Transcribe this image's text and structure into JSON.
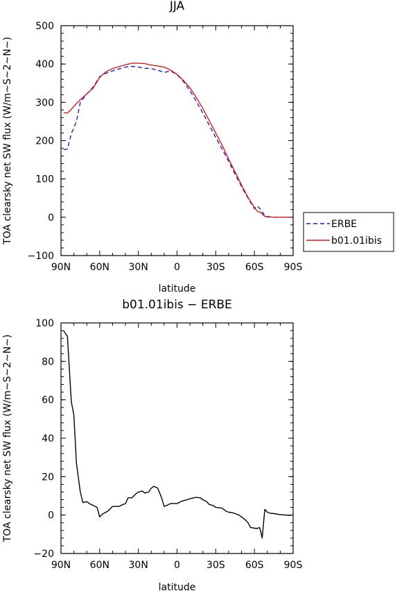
{
  "chart_data": [
    {
      "type": "line",
      "title": "JJA",
      "xlabel": "latitude",
      "ylabel": "TOA clearsky net SW flux (W/m~S~2~N~)",
      "xlim": [
        90,
        -90
      ],
      "ylim": [
        -100,
        500
      ],
      "x_ticks": [
        90,
        60,
        30,
        0,
        -30,
        -60,
        -90
      ],
      "x_tick_labels": [
        "90N",
        "60N",
        "30N",
        "0",
        "30S",
        "60S",
        "90S"
      ],
      "y_ticks": [
        -100,
        0,
        100,
        200,
        300,
        400,
        500
      ],
      "y_tick_labels": [
        "−100",
        "0",
        "100",
        "200",
        "300",
        "400",
        "500"
      ],
      "legend": "right",
      "colors": {
        "ERBE": "#1a1ad8",
        "b01.01ibis": "#e21a1a"
      },
      "x": [
        88,
        85,
        82,
        78,
        75,
        70,
        65,
        60,
        55,
        50,
        45,
        40,
        35,
        30,
        25,
        20,
        15,
        10,
        5,
        0,
        -5,
        -10,
        -15,
        -20,
        -25,
        -30,
        -35,
        -40,
        -45,
        -50,
        -55,
        -60,
        -62,
        -65,
        -68,
        -70,
        -75,
        -80,
        -85,
        -88
      ],
      "series": [
        {
          "name": "ERBE",
          "style": "dashed",
          "values": [
            176,
            178,
            218,
            250,
            300,
            322,
            340,
            367,
            376,
            382,
            387,
            392,
            394,
            392,
            389,
            388,
            384,
            378,
            382,
            372,
            354,
            330,
            302,
            272,
            240,
            208,
            178,
            146,
            112,
            80,
            50,
            22,
            30,
            20,
            4,
            2,
            0,
            0,
            0,
            0
          ]
        },
        {
          "name": "b01.01ibis",
          "style": "solid",
          "values": [
            273,
            272,
            282,
            297,
            307,
            322,
            337,
            365,
            380,
            388,
            393,
            398,
            402,
            402,
            401,
            397,
            395,
            392,
            384,
            373,
            357,
            338,
            312,
            284,
            252,
            220,
            188,
            152,
            118,
            84,
            52,
            25,
            16,
            12,
            2,
            1,
            0,
            0,
            0,
            0
          ]
        }
      ]
    },
    {
      "type": "line",
      "title": "b01.01ibis − ERBE",
      "xlabel": "latitude",
      "ylabel": "TOA clearsky net SW flux (W/m~S~2~N~)",
      "xlim": [
        90,
        -90
      ],
      "ylim": [
        -20,
        100
      ],
      "x_ticks": [
        90,
        60,
        30,
        0,
        -30,
        -60,
        -90
      ],
      "x_tick_labels": [
        "90N",
        "60N",
        "30N",
        "0",
        "30S",
        "60S",
        "90S"
      ],
      "y_ticks": [
        -20,
        0,
        20,
        40,
        60,
        80,
        100
      ],
      "y_tick_labels": [
        "−20",
        "0",
        "20",
        "40",
        "60",
        "80",
        "100"
      ],
      "colors": {
        "diff": "#000000"
      },
      "x": [
        88,
        85,
        82,
        80,
        78,
        75,
        73,
        70,
        68,
        65,
        62,
        60,
        58,
        55,
        53,
        50,
        45,
        42,
        40,
        38,
        35,
        32,
        30,
        27,
        25,
        22,
        20,
        18,
        15,
        12,
        10,
        8,
        5,
        3,
        0,
        -3,
        -5,
        -8,
        -10,
        -13,
        -15,
        -18,
        -20,
        -23,
        -25,
        -28,
        -30,
        -33,
        -35,
        -38,
        -40,
        -43,
        -45,
        -48,
        -50,
        -53,
        -55,
        -57,
        -60,
        -62,
        -64,
        -65,
        -66,
        -68,
        -70,
        -72,
        -75,
        -80,
        -85,
        -88
      ],
      "series": [
        {
          "name": "",
          "style": "solid",
          "values": [
            96,
            93,
            59,
            52,
            27,
            12,
            6.5,
            7,
            6,
            5,
            4,
            -1,
            0.5,
            1.5,
            2.5,
            4.5,
            4.5,
            5.5,
            6,
            9,
            9,
            11,
            12,
            12.5,
            11.5,
            12,
            14,
            15,
            14,
            9,
            4.5,
            5,
            6,
            6,
            6,
            7,
            7.5,
            8,
            8.5,
            9,
            9.2,
            9,
            8,
            7,
            5.5,
            5,
            4,
            3.8,
            3.6,
            2,
            1.5,
            1.2,
            0.8,
            0,
            -1,
            -2.5,
            -4,
            -6.5,
            -6.8,
            -7,
            -6.5,
            -9,
            -12,
            3,
            1.5,
            1,
            0.8,
            0.2,
            0,
            -0.2
          ]
        }
      ]
    }
  ]
}
